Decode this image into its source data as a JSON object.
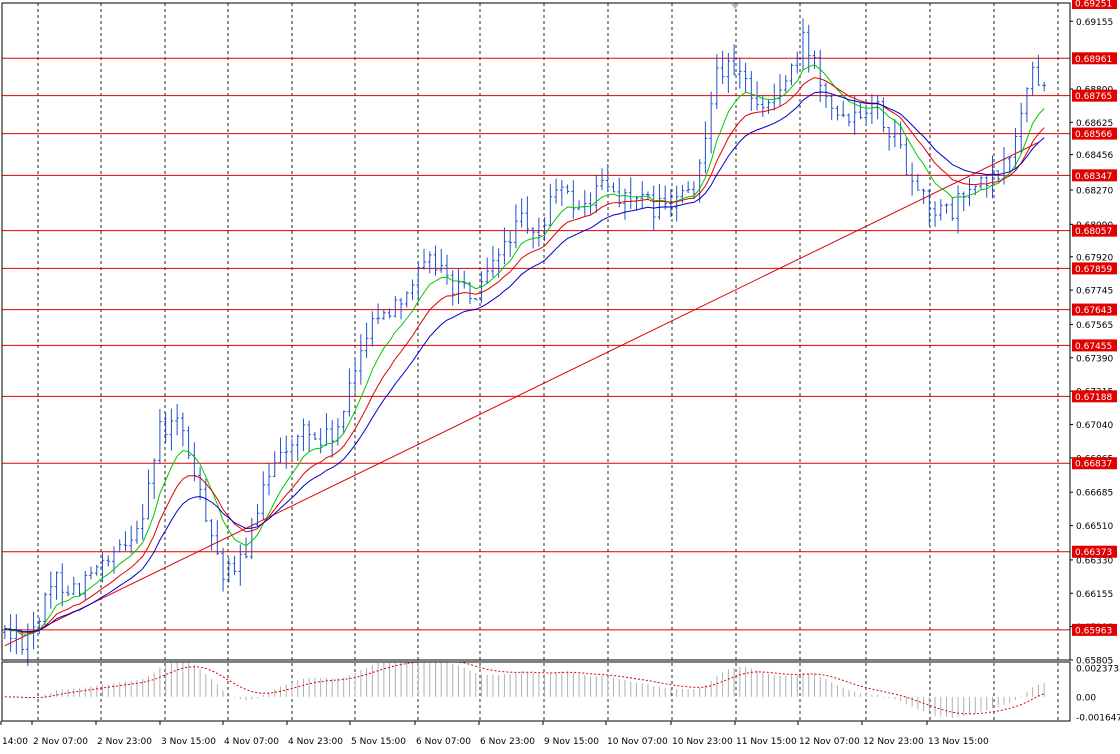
{
  "chart_data": {
    "type": "candlestick",
    "price_axis": {
      "ylim": [
        0.65805,
        0.69251
      ],
      "ticks": [
        "0.69155",
        "0.68800",
        "0.68625",
        "0.68456",
        "0.68270",
        "0.68090",
        "0.67920",
        "0.67745",
        "0.67565",
        "0.67390",
        "0.67215",
        "0.67040",
        "0.66865",
        "0.66685",
        "0.66510",
        "0.66330",
        "0.66155",
        "0.65980",
        "0.65805"
      ]
    },
    "time_axis": {
      "labels": [
        "14:00",
        "2 Nov 07:00",
        "2 Nov 23:00",
        "3 Nov 15:00",
        "4 Nov 07:00",
        "4 Nov 23:00",
        "5 Nov 15:00",
        "6 Nov 07:00",
        "6 Nov 23:00",
        "9 Nov 15:00",
        "10 Nov 07:00",
        "10 Nov 23:00",
        "11 Nov 15:00",
        "12 Nov 07:00",
        "12 Nov 23:00",
        "13 Nov 15:00"
      ]
    },
    "levels": [
      "0.69251",
      "0.68961",
      "0.68765",
      "0.68566",
      "0.68347",
      "0.68057",
      "0.67859",
      "0.67643",
      "0.67455",
      "0.67188",
      "0.66837",
      "0.66373",
      "0.65963"
    ],
    "trendline": {
      "start": {
        "bar": 0,
        "price": 0.6588
      },
      "end": {
        "bar": 180,
        "price": 0.6852
      }
    },
    "price_path": [
      [
        0,
        0.6595
      ],
      [
        3,
        0.6592
      ],
      [
        6,
        0.6603
      ],
      [
        9,
        0.6623
      ],
      [
        12,
        0.6618
      ],
      [
        15,
        0.6625
      ],
      [
        18,
        0.663
      ],
      [
        21,
        0.664
      ],
      [
        24,
        0.666
      ],
      [
        27,
        0.67
      ],
      [
        30,
        0.6705
      ],
      [
        32,
        0.669
      ],
      [
        34,
        0.6665
      ],
      [
        36,
        0.665
      ],
      [
        38,
        0.6625
      ],
      [
        40,
        0.6625
      ],
      [
        42,
        0.664
      ],
      [
        44,
        0.6655
      ],
      [
        46,
        0.668
      ],
      [
        48,
        0.6695
      ],
      [
        50,
        0.669
      ],
      [
        52,
        0.6702
      ],
      [
        55,
        0.6695
      ],
      [
        58,
        0.67
      ],
      [
        60,
        0.672
      ],
      [
        62,
        0.6745
      ],
      [
        64,
        0.6762
      ],
      [
        66,
        0.676
      ],
      [
        68,
        0.677
      ],
      [
        70,
        0.6775
      ],
      [
        73,
        0.6785
      ],
      [
        75,
        0.679
      ],
      [
        77,
        0.678
      ],
      [
        79,
        0.6775
      ],
      [
        82,
        0.677
      ],
      [
        85,
        0.6785
      ],
      [
        87,
        0.68
      ],
      [
        90,
        0.681
      ],
      [
        92,
        0.68
      ],
      [
        94,
        0.681
      ],
      [
        96,
        0.683
      ],
      [
        98,
        0.6822
      ],
      [
        101,
        0.6818
      ],
      [
        104,
        0.683
      ],
      [
        107,
        0.6825
      ],
      [
        110,
        0.682
      ],
      [
        113,
        0.6818
      ],
      [
        116,
        0.6818
      ],
      [
        118,
        0.6825
      ],
      [
        120,
        0.6822
      ],
      [
        122,
        0.686
      ],
      [
        124,
        0.6893
      ],
      [
        126,
        0.689
      ],
      [
        128,
        0.6885
      ],
      [
        130,
        0.688
      ],
      [
        132,
        0.687
      ],
      [
        134,
        0.6875
      ],
      [
        136,
        0.6885
      ],
      [
        138,
        0.6895
      ],
      [
        139,
        0.6905
      ],
      [
        141,
        0.6895
      ],
      [
        143,
        0.688
      ],
      [
        145,
        0.687
      ],
      [
        147,
        0.6868
      ],
      [
        149,
        0.687
      ],
      [
        151,
        0.6875
      ],
      [
        153,
        0.6865
      ],
      [
        155,
        0.6855
      ],
      [
        157,
        0.684
      ],
      [
        159,
        0.683
      ],
      [
        161,
        0.682
      ],
      [
        163,
        0.6815
      ],
      [
        165,
        0.6815
      ],
      [
        167,
        0.6825
      ],
      [
        169,
        0.6828
      ],
      [
        171,
        0.683
      ],
      [
        173,
        0.6835
      ],
      [
        175,
        0.6845
      ],
      [
        177,
        0.687
      ],
      [
        179,
        0.689
      ],
      [
        181,
        0.688
      ]
    ],
    "moving_averages": [
      {
        "color": "#00c800",
        "period": 8
      },
      {
        "color": "#e00000",
        "period": 14
      },
      {
        "color": "#0000c8",
        "period": 21
      }
    ],
    "oscillator": {
      "ylim": [
        -0.001647,
        0.002373
      ],
      "ticks": [
        "0.002373",
        "0.00",
        "-0.001647"
      ]
    },
    "colors": {
      "candle": "#2050c8",
      "level": "#e00000",
      "level_label_bg": "#e00000",
      "grid": "#000000"
    }
  }
}
